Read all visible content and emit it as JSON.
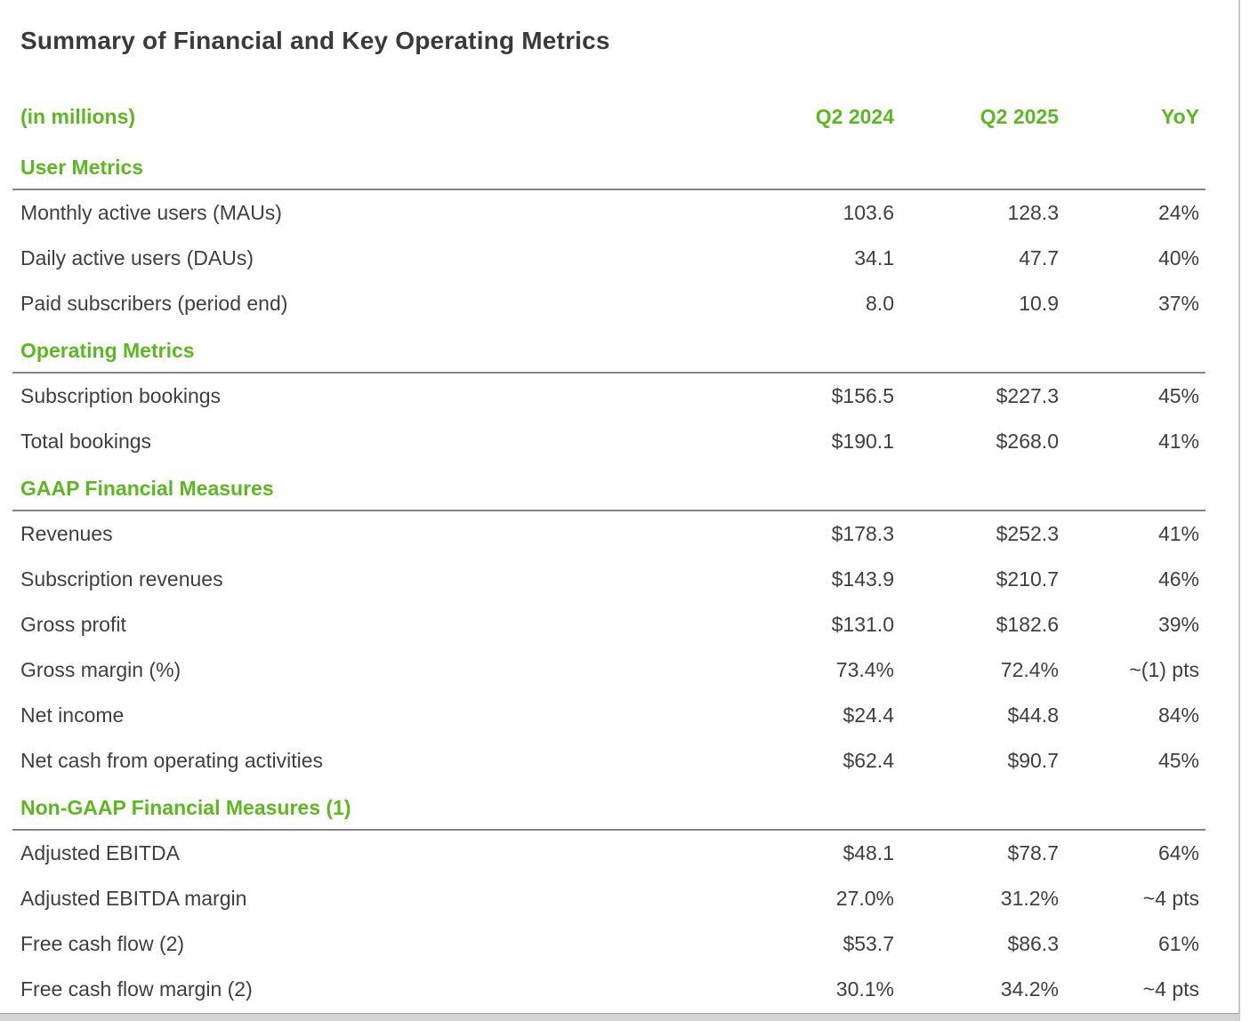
{
  "colors": {
    "accent": "#5cb820",
    "text": "#3f3f3f",
    "rule": "#858585"
  },
  "title": "Summary of Financial and Key Operating Metrics",
  "table": {
    "unit_label": "(in millions)",
    "columns": [
      "Q2 2024",
      "Q2 2025",
      "YoY"
    ],
    "sections": [
      {
        "name": "User Metrics",
        "rows": [
          {
            "label": "Monthly active users (MAUs)",
            "values": [
              "103.6",
              "128.3",
              "24%"
            ]
          },
          {
            "label": "Daily active users (DAUs)",
            "values": [
              "34.1",
              "47.7",
              "40%"
            ]
          },
          {
            "label": "Paid subscribers (period end)",
            "values": [
              "8.0",
              "10.9",
              "37%"
            ]
          }
        ]
      },
      {
        "name": "Operating Metrics",
        "rows": [
          {
            "label": "Subscription bookings",
            "values": [
              "$156.5",
              "$227.3",
              "45%"
            ]
          },
          {
            "label": "Total bookings",
            "values": [
              "$190.1",
              "$268.0",
              "41%"
            ]
          }
        ]
      },
      {
        "name": "GAAP Financial Measures",
        "rows": [
          {
            "label": "Revenues",
            "values": [
              "$178.3",
              "$252.3",
              "41%"
            ]
          },
          {
            "label": "Subscription revenues",
            "values": [
              "$143.9",
              "$210.7",
              "46%"
            ]
          },
          {
            "label": "Gross profit",
            "values": [
              "$131.0",
              "$182.6",
              "39%"
            ]
          },
          {
            "label": "Gross margin (%)",
            "values": [
              "73.4%",
              "72.4%",
              "~(1) pts"
            ]
          },
          {
            "label": "Net income",
            "values": [
              "$24.4",
              "$44.8",
              "84%"
            ]
          },
          {
            "label": "Net cash from operating activities",
            "values": [
              "$62.4",
              "$90.7",
              "45%"
            ]
          }
        ]
      },
      {
        "name": "Non-GAAP Financial Measures (1)",
        "rows": [
          {
            "label": "Adjusted EBITDA",
            "values": [
              "$48.1",
              "$78.7",
              "64%"
            ]
          },
          {
            "label": "Adjusted EBITDA margin",
            "values": [
              "27.0%",
              "31.2%",
              "~4 pts"
            ]
          },
          {
            "label": "Free cash flow (2)",
            "values": [
              "$53.7",
              "$86.3",
              "61%"
            ]
          },
          {
            "label": "Free cash flow margin (2)",
            "values": [
              "30.1%",
              "34.2%",
              "~4 pts"
            ]
          }
        ]
      }
    ]
  }
}
